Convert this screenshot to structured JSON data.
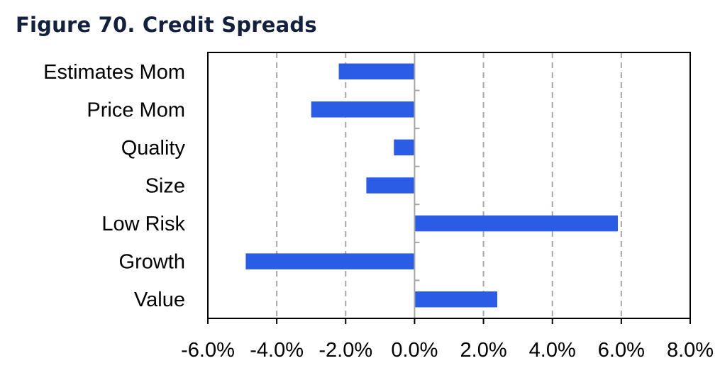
{
  "title": "Figure 70. Credit Spreads",
  "chart_data": {
    "type": "bar",
    "orientation": "horizontal",
    "title": "Figure 70. Credit Spreads",
    "categories": [
      "Estimates Mom",
      "Price Mom",
      "Quality",
      "Size",
      "Low Risk",
      "Growth",
      "Value"
    ],
    "values": [
      -2.2,
      -3.0,
      -0.6,
      -1.4,
      5.9,
      -4.9,
      2.4
    ],
    "value_unit": "%",
    "xlim": [
      -6.0,
      8.0
    ],
    "xticks": [
      -6.0,
      -4.0,
      -2.0,
      0.0,
      2.0,
      4.0,
      6.0,
      8.0
    ],
    "xtick_labels": [
      "-6.0%",
      "-4.0%",
      "-2.0%",
      "0.0%",
      "2.0%",
      "4.0%",
      "6.0%",
      "8.0%"
    ],
    "xlabel": "",
    "ylabel": "",
    "grid": "vertical dashed",
    "bar_color": "#2a5ce6",
    "legend": "none"
  }
}
